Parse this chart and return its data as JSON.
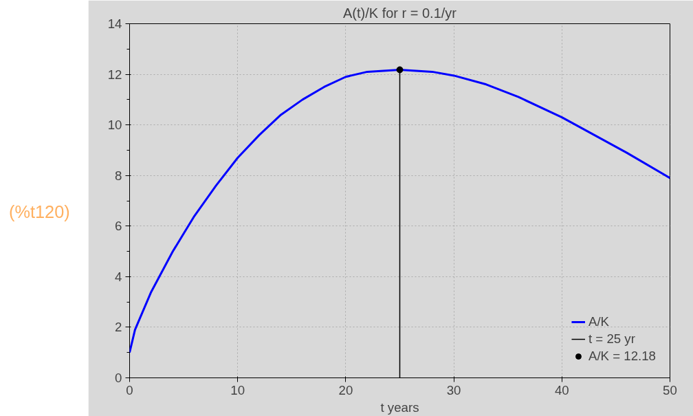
{
  "chart_data": {
    "type": "line",
    "title": "A(t)/K for r = 0.1/yr",
    "xlabel": "t years",
    "xlim": [
      0,
      50
    ],
    "ylim": [
      0,
      14
    ],
    "xticks": [
      0,
      10,
      20,
      30,
      40,
      50
    ],
    "yticks": [
      0,
      2,
      4,
      6,
      8,
      10,
      12,
      14
    ],
    "grid": true,
    "legend": "bottom right",
    "annotations": [
      "(%t120)"
    ],
    "series": [
      {
        "name": "A/K",
        "color": "#0000ff",
        "x": [
          0,
          0.5,
          1,
          2,
          3,
          4,
          5,
          6,
          8,
          10,
          12,
          14,
          16,
          18,
          20,
          22,
          25,
          28,
          30,
          33,
          36,
          40,
          43,
          46,
          50
        ],
        "values": [
          1.0,
          1.9,
          2.4,
          3.4,
          4.2,
          5.0,
          5.7,
          6.4,
          7.6,
          8.7,
          9.6,
          10.4,
          11.0,
          11.5,
          11.9,
          12.1,
          12.18,
          12.1,
          11.95,
          11.6,
          11.1,
          10.3,
          9.6,
          8.9,
          7.9
        ]
      },
      {
        "name": "t = 25 yr",
        "color": "#000000",
        "type": "line",
        "x": [
          25,
          25
        ],
        "values": [
          0,
          12.18
        ]
      },
      {
        "name": "A/K = 12.18",
        "color": "#000000",
        "type": "scatter",
        "marker": "circle",
        "x": [
          25
        ],
        "values": [
          12.18
        ]
      }
    ]
  }
}
